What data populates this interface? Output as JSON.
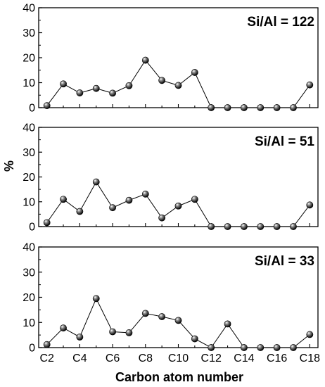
{
  "chart_data": {
    "type": "line",
    "xlabel": "Carbon atom number",
    "ylabel": "%",
    "x": [
      2,
      3,
      4,
      5,
      6,
      7,
      8,
      9,
      10,
      11,
      12,
      13,
      14,
      15,
      16,
      17,
      18
    ],
    "x_tick_values": [
      2,
      4,
      6,
      8,
      10,
      12,
      14,
      16,
      18
    ],
    "x_tick_labels": [
      "C2",
      "C4",
      "C6",
      "C8",
      "C10",
      "C12",
      "C14",
      "C16",
      "C18"
    ],
    "xlim": [
      1.5,
      18.5
    ],
    "ylim": [
      0,
      40
    ],
    "y_ticks": [
      0,
      10,
      20,
      30,
      40
    ],
    "marker": "sphere",
    "panels": [
      {
        "label": "Si/Al = 122",
        "values": [
          0.8,
          9.5,
          5.9,
          7.7,
          5.8,
          8.8,
          19,
          10.9,
          8.9,
          14.1,
          0,
          0,
          0,
          0,
          0,
          0,
          9.1
        ]
      },
      {
        "label": "Si/Al = 51",
        "values": [
          1.6,
          11,
          6.1,
          18,
          7.6,
          10.6,
          13.1,
          3.5,
          8.3,
          11,
          0,
          0,
          0,
          0,
          0,
          0,
          8.7
        ]
      },
      {
        "label": "Si/Al = 33",
        "values": [
          1.2,
          7.8,
          4.2,
          19.5,
          6.3,
          5.9,
          13.6,
          12.3,
          10.8,
          3.5,
          0,
          9.4,
          0,
          0,
          0,
          0,
          5.2
        ]
      }
    ]
  }
}
